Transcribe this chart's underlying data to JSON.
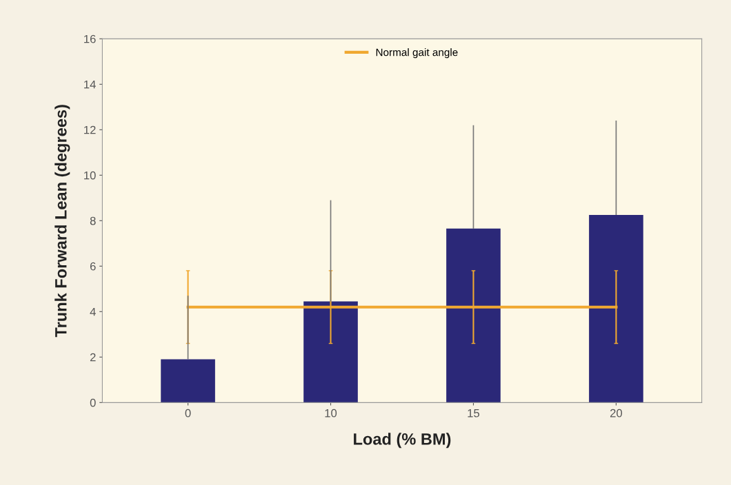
{
  "chart_data": {
    "type": "bar",
    "xlabel": "Load (% BM)",
    "ylabel": "Trunk Forward Lean (degrees)",
    "categories": [
      "0",
      "10",
      "15",
      "20"
    ],
    "series": [
      {
        "color": "#2b2878",
        "values": [
          1.9,
          4.45,
          7.65,
          8.25
        ],
        "errors": [
          [
            1.9,
            4.7
          ],
          [
            4.45,
            8.9
          ],
          [
            7.65,
            12.2
          ],
          [
            8.25,
            12.4
          ]
        ]
      },
      {
        "type": "line",
        "name": "Normal gait angle",
        "color": "#f0a830",
        "values": [
          4.2,
          4.2,
          4.2,
          4.2
        ],
        "errors": [
          1.6,
          1.6,
          1.6,
          1.6
        ]
      }
    ],
    "ylim": [
      0,
      16
    ],
    "yticks": [
      0,
      2,
      4,
      6,
      8,
      10,
      12,
      14,
      16
    ],
    "grid": false,
    "legend": "top",
    "marker": "none"
  }
}
